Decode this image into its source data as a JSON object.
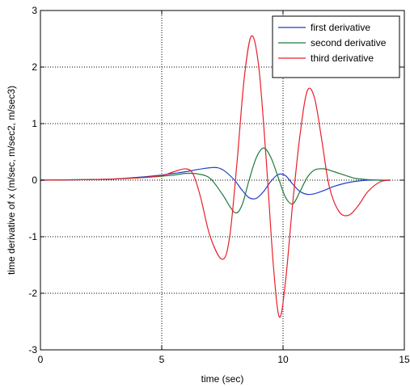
{
  "chart_data": {
    "type": "line",
    "xlabel": "time (sec)",
    "ylabel": "time derivative of x (m/sec, m/sec2, m/sec3)",
    "xlim": [
      0,
      15
    ],
    "ylim": [
      -3,
      3
    ],
    "xticks": [
      "0",
      "5",
      "10",
      "15"
    ],
    "yticks": [
      "-3",
      "-2",
      "-1",
      "0",
      "1",
      "2",
      "3"
    ],
    "grid": true,
    "legend_position": "top-right",
    "series": [
      {
        "name": "first derivative",
        "color": "#1f3fc8",
        "x": [
          0,
          2,
          3,
          4,
          5,
          5.5,
          6,
          6.5,
          7,
          7.3,
          7.6,
          8,
          8.3,
          8.6,
          8.9,
          9.2,
          9.5,
          9.8,
          10.1,
          10.4,
          10.7,
          11,
          11.3,
          11.7,
          12.1,
          12.6,
          13,
          13.5,
          14,
          14.4
        ],
        "y": [
          0,
          0.01,
          0.02,
          0.05,
          0.09,
          0.12,
          0.15,
          0.19,
          0.22,
          0.22,
          0.16,
          0.0,
          -0.17,
          -0.31,
          -0.32,
          -0.2,
          -0.02,
          0.1,
          0.08,
          -0.07,
          -0.2,
          -0.25,
          -0.24,
          -0.18,
          -0.11,
          -0.05,
          -0.02,
          0.0,
          0.0,
          0.0
        ]
      },
      {
        "name": "second derivative",
        "color": "#1e7a3a",
        "x": [
          0,
          2,
          3,
          4,
          5,
          5.5,
          6,
          6.5,
          7,
          7.5,
          8,
          8.3,
          8.6,
          8.9,
          9.2,
          9.5,
          9.8,
          10.1,
          10.4,
          10.7,
          11,
          11.3,
          11.7,
          12.1,
          12.6,
          13,
          13.5,
          14,
          14.4
        ],
        "y": [
          0,
          0.01,
          0.02,
          0.04,
          0.07,
          0.09,
          0.12,
          0.11,
          0.03,
          -0.25,
          -0.57,
          -0.45,
          0.0,
          0.4,
          0.57,
          0.4,
          0.05,
          -0.3,
          -0.42,
          -0.2,
          0.05,
          0.18,
          0.2,
          0.15,
          0.08,
          0.03,
          0.01,
          0.0,
          0.0
        ]
      },
      {
        "name": "third derivative",
        "color": "#e8202a",
        "x": [
          0,
          2,
          3,
          4,
          5,
          5.5,
          6,
          6.3,
          6.6,
          7,
          7.5,
          7.8,
          8.1,
          8.4,
          8.7,
          9,
          9.3,
          9.6,
          9.85,
          10.1,
          10.4,
          10.7,
          11,
          11.3,
          11.6,
          11.9,
          12.3,
          12.7,
          13.1,
          13.5,
          14,
          14.4
        ],
        "y": [
          0,
          0.01,
          0.02,
          0.04,
          0.08,
          0.15,
          0.2,
          0.1,
          -0.3,
          -1.0,
          -1.4,
          -1.0,
          0.3,
          1.8,
          2.55,
          2.0,
          0.4,
          -1.5,
          -2.42,
          -1.8,
          -0.4,
          0.8,
          1.58,
          1.45,
          0.7,
          -0.1,
          -0.55,
          -0.62,
          -0.45,
          -0.2,
          -0.03,
          0.0
        ]
      }
    ]
  }
}
